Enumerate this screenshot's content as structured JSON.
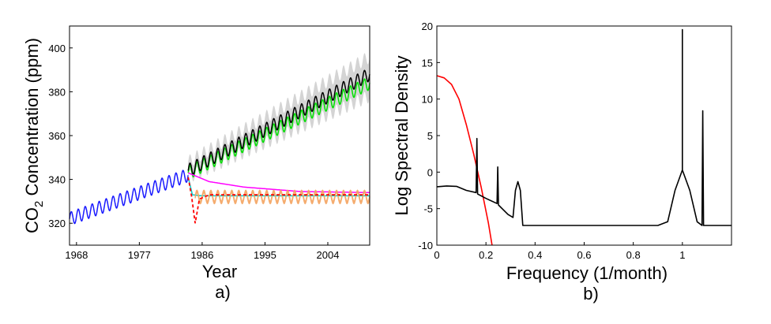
{
  "chart_data": [
    {
      "type": "line",
      "panel_label": "a)",
      "xlabel": "Year",
      "ylabel": "CO",
      "ylabel_sub": "2",
      "ylabel_rest": " Concentration (ppm)",
      "xlim": [
        1967,
        2010
      ],
      "ylim": [
        310,
        410
      ],
      "xticks": [
        1968,
        1977,
        1986,
        1995,
        2004
      ],
      "yticks": [
        320,
        340,
        360,
        380,
        400
      ],
      "seasonal_amplitude_ppm": 3,
      "series": [
        {
          "role": "observed data",
          "color": "#1a1aff",
          "x_range": [
            1967,
            1984
          ],
          "trend": [
            [
              1967,
              322
            ],
            [
              1984,
              342
            ]
          ],
          "seasonal": true
        },
        {
          "role": "predictive uncertainty band",
          "color": "#d4d4d4",
          "x_range": [
            1984,
            2010
          ],
          "trend_lo": [
            [
              1984,
              341
            ],
            [
              2010,
              378
            ]
          ],
          "trend_hi": [
            [
              1984,
              348
            ],
            [
              2010,
              396
            ]
          ],
          "seasonal": true
        },
        {
          "role": "true continuation",
          "color": "#00e000",
          "x_range": [
            1984,
            2010
          ],
          "trend": [
            [
              1984,
              343
            ],
            [
              2010,
              384
            ]
          ],
          "seasonal": true
        },
        {
          "role": "predictive mean",
          "color": "#000000",
          "x_range": [
            1984,
            2010
          ],
          "trend": [
            [
              1984,
              344
            ],
            [
              2010,
              388
            ]
          ],
          "seasonal": true
        },
        {
          "role": "alternative model 1",
          "color": "#ff00ff",
          "x_range": [
            1984,
            2010
          ],
          "points": [
            [
              1984,
              343
            ],
            [
              1987,
              339
            ],
            [
              1992,
              336.5
            ],
            [
              2000,
              334.5
            ],
            [
              2010,
              334
            ]
          ]
        },
        {
          "role": "alternative model 2",
          "color": "#00cccc",
          "x_range": [
            1984,
            2010
          ],
          "points": [
            [
              1984,
              341
            ],
            [
              1984.6,
              333
            ],
            [
              1986,
              332.5
            ],
            [
              2010,
              332.5
            ]
          ]
        },
        {
          "role": "alternative model 3 (band)",
          "color": "#f4a460",
          "x_range": [
            1985,
            2010
          ],
          "center": 332,
          "amplitude": 2.5,
          "seasonal": true
        },
        {
          "role": "alternative model 4",
          "color": "#ff0000",
          "dashed": true,
          "x_range": [
            1984,
            2010
          ],
          "points": [
            [
              1984,
              341
            ],
            [
              1984.5,
              332
            ],
            [
              1985,
              320
            ],
            [
              1985.6,
              331
            ],
            [
              1987,
              333
            ],
            [
              2010,
              333
            ]
          ]
        }
      ]
    },
    {
      "type": "line",
      "panel_label": "b)",
      "xlabel": "Frequency (1/month)",
      "ylabel": "Log Spectral Density",
      "xlim": [
        0,
        1.2
      ],
      "ylim": [
        -10,
        20
      ],
      "xticks": [
        0,
        0.2,
        0.4,
        0.6,
        0.8,
        1
      ],
      "xtick_labels": [
        "0",
        "0.2",
        "0.4",
        "0.6",
        "0.8",
        "1"
      ],
      "yticks": [
        -10,
        -5,
        0,
        5,
        10,
        15,
        20
      ],
      "series": [
        {
          "role": "red spectral density",
          "color": "#ff0000",
          "points": [
            [
              0,
              13.2
            ],
            [
              0.03,
              12.9
            ],
            [
              0.06,
              12
            ],
            [
              0.09,
              10
            ],
            [
              0.12,
              6.5
            ],
            [
              0.15,
              2.5
            ],
            [
              0.18,
              -2
            ],
            [
              0.21,
              -7
            ],
            [
              0.225,
              -10
            ]
          ]
        },
        {
          "role": "black spectral density",
          "color": "#000000",
          "points": [
            [
              0,
              -2
            ],
            [
              0.04,
              -1.9
            ],
            [
              0.08,
              -1.95
            ],
            [
              0.12,
              -2.5
            ],
            [
              0.16,
              -2.8
            ],
            [
              0.163,
              4.6
            ],
            [
              0.166,
              -3.0
            ],
            [
              0.2,
              -3.6
            ],
            [
              0.245,
              -4.3
            ],
            [
              0.248,
              0.7
            ],
            [
              0.251,
              -4.5
            ],
            [
              0.29,
              -5.8
            ],
            [
              0.31,
              -6.2
            ],
            [
              0.32,
              -2.5
            ],
            [
              0.33,
              -1.3
            ],
            [
              0.34,
              -2.5
            ],
            [
              0.35,
              -7.3
            ],
            [
              0.9,
              -7.3
            ],
            [
              0.94,
              -6.8
            ],
            [
              0.97,
              -2.5
            ],
            [
              1.0,
              0.3
            ],
            [
              1.0,
              19.5
            ],
            [
              1.0,
              0.3
            ],
            [
              1.03,
              -2.5
            ],
            [
              1.06,
              -6.8
            ],
            [
              1.08,
              -7.3
            ],
            [
              1.083,
              8.4
            ],
            [
              1.086,
              -7.3
            ],
            [
              1.2,
              -7.3
            ]
          ]
        }
      ]
    }
  ]
}
